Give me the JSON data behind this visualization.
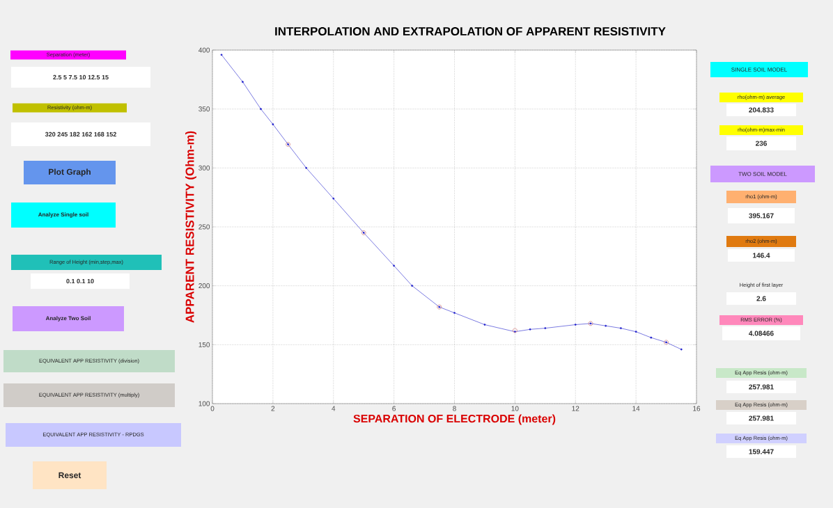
{
  "chart_data": {
    "type": "line",
    "title": "INTERPOLATION AND EXTRAPOLATION OF APPARENT RESISTIVITY",
    "xlabel": "SEPARATION OF ELECTRODE (meter)",
    "ylabel": "APPARENT RESISTIVITY (Ohm-m)",
    "xlim": [
      0,
      16
    ],
    "ylim": [
      100,
      400
    ],
    "xticks": [
      0,
      2,
      4,
      6,
      8,
      10,
      12,
      14,
      16
    ],
    "yticks": [
      100,
      150,
      200,
      250,
      300,
      350,
      400
    ],
    "grid": true,
    "series": [
      {
        "color": "#2222cc",
        "marker": "circle",
        "line_style": "solid",
        "x": [
          0.3,
          1.0,
          1.6,
          2.0,
          2.5,
          3.1,
          4.0,
          5.0,
          6.0,
          6.6,
          7.5,
          8.0,
          9.0,
          10.0,
          10.5,
          11.0,
          12.0,
          12.5,
          13.0,
          13.5,
          14.0,
          14.5,
          15.0,
          15.5
        ],
        "values": [
          396,
          373,
          350,
          337,
          320,
          300,
          274,
          245,
          217,
          200,
          182,
          177,
          167,
          161,
          163,
          164,
          167,
          168,
          166,
          164,
          161,
          156,
          152,
          146
        ]
      },
      {
        "type": "scatter",
        "color": "#d08080",
        "marker": "circle",
        "x": [
          2.5,
          5,
          7.5,
          10,
          12.5,
          15
        ],
        "values": [
          320,
          245,
          182,
          162,
          168,
          152
        ]
      }
    ],
    "annotations": [
      "Separation (meter)",
      "2.5 5 7.5 10 12.5 15",
      "Resistivity (ohm-m)",
      "320 245 182 162 168 152",
      "Plot Graph",
      "Analyze Single soil",
      "Range of Height (min,step,max)",
      "0.1 0.1 10",
      "Analyze Two Soil",
      "EQUIVALENT APP RESISTIVITY (division)",
      "EQUIVALENT APP RESISTIVITY (multiply)",
      "EQUIVALENT APP RESISTIVITY - RPDGS",
      "Reset",
      "SINGLE SOIL MODEL",
      "rho(ohm-m) average",
      "204.833",
      "rho(ohm-m)max-min",
      "236",
      "TWO SOIL MODEL",
      "rho1 (ohm-m)",
      "395.167",
      "rho2 (ohm-m)",
      "146.4",
      "Height of first layer",
      "2.6",
      "RMS ERROR (%)",
      "4.08466",
      "Eq App Resis (ohm-m)",
      "257.981",
      "Eq App Resis (ohm-m)",
      "257.981",
      "Eq App Resis (ohm-m)",
      "159.447"
    ]
  }
}
